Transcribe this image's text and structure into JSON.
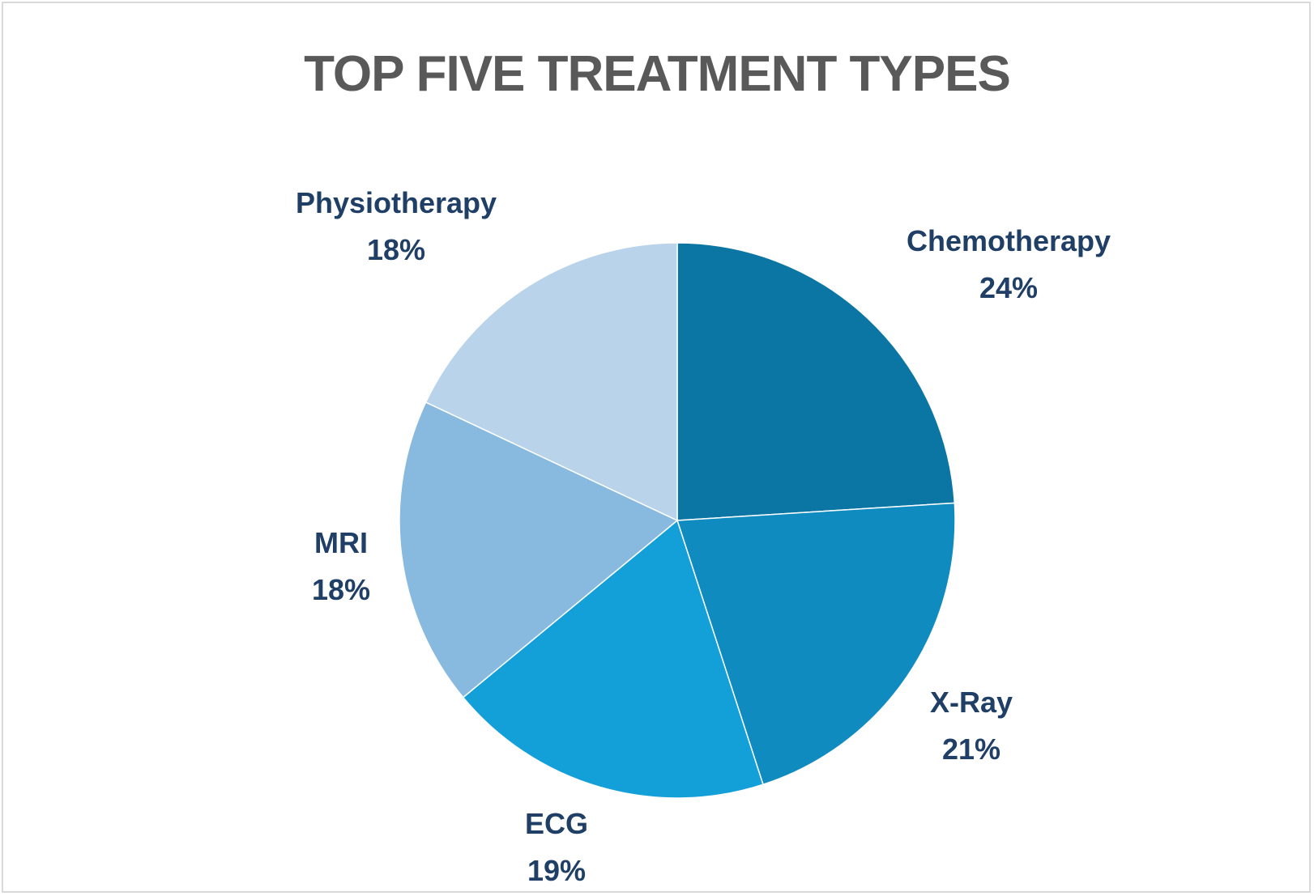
{
  "chart_data": {
    "type": "pie",
    "title": "TOP FIVE TREATMENT TYPES",
    "start_angle_deg": 0,
    "direction": "clockwise",
    "slices": [
      {
        "label": "Chemotherapy",
        "value": 24,
        "value_label": "24%",
        "color": "#0B76A4"
      },
      {
        "label": "X-Ray",
        "value": 21,
        "value_label": "21%",
        "color": "#0F8BC0"
      },
      {
        "label": "ECG",
        "value": 19,
        "value_label": "19%",
        "color": "#139FD8"
      },
      {
        "label": "MRI",
        "value": 18,
        "value_label": "18%",
        "color": "#88BAE0"
      },
      {
        "label": "Physiotherapy",
        "value": 18,
        "value_label": "18%",
        "color": "#B8D3EA"
      }
    ],
    "label_color": "#1F3F66",
    "title_color": "#595959"
  }
}
